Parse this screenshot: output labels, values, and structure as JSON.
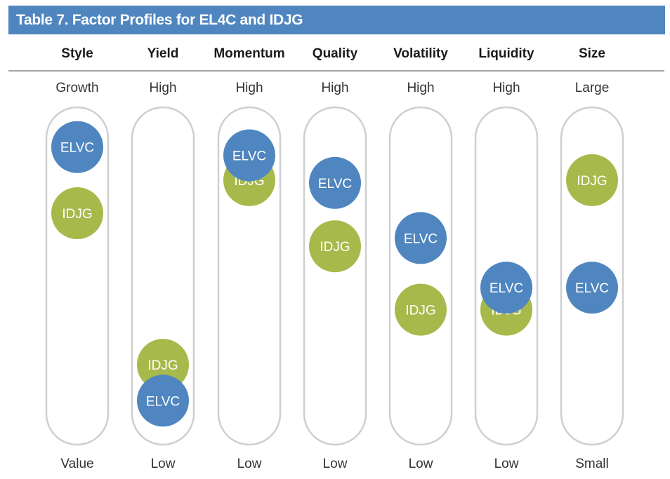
{
  "title": "Table 7. Factor Profiles for EL4C and IDJG",
  "colors": {
    "header_bar": "#4f86c0",
    "ELVC": "#4f86c0",
    "IDJG": "#a8b94b",
    "track": "#cfcfcf",
    "rule": "#888888"
  },
  "chart_data": {
    "type": "scatter",
    "title": "Table 7. Factor Profiles for EL4C and IDJG",
    "scale_note": "Position within each column: 1 = top label, 0 = bottom label",
    "series_order": [
      "IDJG",
      "ELVC"
    ],
    "factors": [
      {
        "name": "Style",
        "high_label": "Growth",
        "low_label": "Value",
        "positions": {
          "ELVC": 0.96,
          "IDJG": 0.72
        }
      },
      {
        "name": "Yield",
        "high_label": "High",
        "low_label": "Low",
        "positions": {
          "ELVC": 0.04,
          "IDJG": 0.17
        }
      },
      {
        "name": "Momentum",
        "high_label": "High",
        "low_label": "Low",
        "positions": {
          "ELVC": 0.93,
          "IDJG": 0.84
        }
      },
      {
        "name": "Quality",
        "high_label": "High",
        "low_label": "Low",
        "positions": {
          "ELVC": 0.83,
          "IDJG": 0.6
        }
      },
      {
        "name": "Volatility",
        "high_label": "High",
        "low_label": "Low",
        "positions": {
          "ELVC": 0.63,
          "IDJG": 0.37
        }
      },
      {
        "name": "Liquidity",
        "high_label": "High",
        "low_label": "Low",
        "positions": {
          "ELVC": 0.45,
          "IDJG": 0.37
        }
      },
      {
        "name": "Size",
        "high_label": "Large",
        "low_label": "Small",
        "positions": {
          "ELVC": 0.45,
          "IDJG": 0.84
        }
      }
    ]
  }
}
